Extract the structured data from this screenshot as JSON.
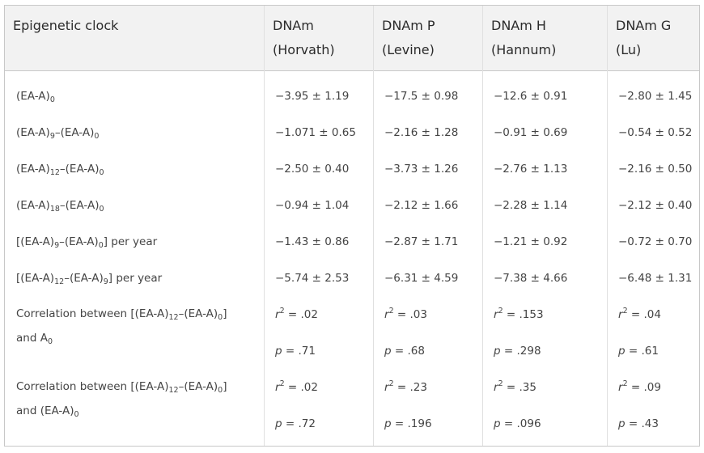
{
  "table": {
    "headers": {
      "label_col": "Epigenetic clock",
      "horvath": [
        "DNAm",
        "(Horvath)"
      ],
      "levine": [
        "DNAm P",
        "(Levine)"
      ],
      "hannum": [
        "DNAm H",
        "(Hannum)"
      ],
      "lu": [
        "DNAm G",
        "(Lu)"
      ]
    },
    "rows": [
      {
        "label": {
          "t1": "(EA-A)",
          "s1": "0"
        },
        "values": [
          "−3.95 ± 1.19",
          "−17.5 ± 0.98",
          "−12.6 ± 0.91",
          "−2.80 ± 1.45"
        ]
      },
      {
        "label": {
          "t1": "(EA-A)",
          "s1": "9",
          "t2": "–(EA-A)",
          "s2": "0"
        },
        "values": [
          "−1.071 ± 0.65",
          "−2.16 ± 1.28",
          "−0.91 ± 0.69",
          "−0.54 ± 0.52"
        ]
      },
      {
        "label": {
          "t1": "(EA-A)",
          "s1": "12",
          "t2": "–(EA-A)",
          "s2": "0"
        },
        "values": [
          "−2.50 ± 0.40",
          "−3.73 ± 1.26",
          "−2.76 ± 1.13",
          "−2.16 ± 0.50"
        ]
      },
      {
        "label": {
          "t1": "(EA-A)",
          "s1": "18",
          "t2": "–(EA-A)",
          "s2": "0"
        },
        "values": [
          "−0.94 ± 1.04",
          "−2.12 ± 1.66",
          "−2.28 ± 1.14",
          "−2.12 ± 0.40"
        ]
      },
      {
        "label": {
          "t1": "[(EA-A)",
          "s1": "9",
          "t2": "–(EA-A)",
          "s2": "0",
          "t3": "] per year"
        },
        "values": [
          "−1.43 ± 0.86",
          "−2.87 ± 1.71",
          "−1.21 ± 0.92",
          "−0.72 ± 0.70"
        ]
      },
      {
        "label": {
          "t1": "[(EA-A)",
          "s1": "12",
          "t2": "–(EA-A)",
          "s2": "9",
          "t3": "] per year"
        },
        "values": [
          "−5.74 ± 2.53",
          "−6.31 ± 4.59",
          "−7.38 ± 4.66",
          "−6.48 ± 1.31"
        ]
      }
    ],
    "correlations": [
      {
        "label": {
          "t1": "Correlation between [(EA-A)",
          "s1": "12",
          "t2": "–(EA-A)",
          "s2": "0",
          "t3": "]",
          "line2": "and A",
          "s3": "0",
          "line2_end": ""
        },
        "r_prefix": "r",
        "r_exp": "2",
        "r_values": [
          " = .02",
          " = .03",
          " = .153",
          " = .04"
        ],
        "p_prefix": "p",
        "p_values": [
          " = .71",
          " = .68",
          " = .298",
          " = .61"
        ]
      },
      {
        "label": {
          "t1": "Correlation between [(EA-A)",
          "s1": "12",
          "t2": "–(EA-A)",
          "s2": "0",
          "t3": "]",
          "line2": "and (EA-A)",
          "s3": "0",
          "line2_end": ""
        },
        "r_prefix": "r",
        "r_exp": "2",
        "r_values": [
          " = .02",
          " = .23",
          " = .35",
          " = .09"
        ],
        "p_prefix": "p",
        "p_values": [
          " = .72",
          " = .196",
          " = .096",
          " = .43"
        ]
      }
    ]
  }
}
